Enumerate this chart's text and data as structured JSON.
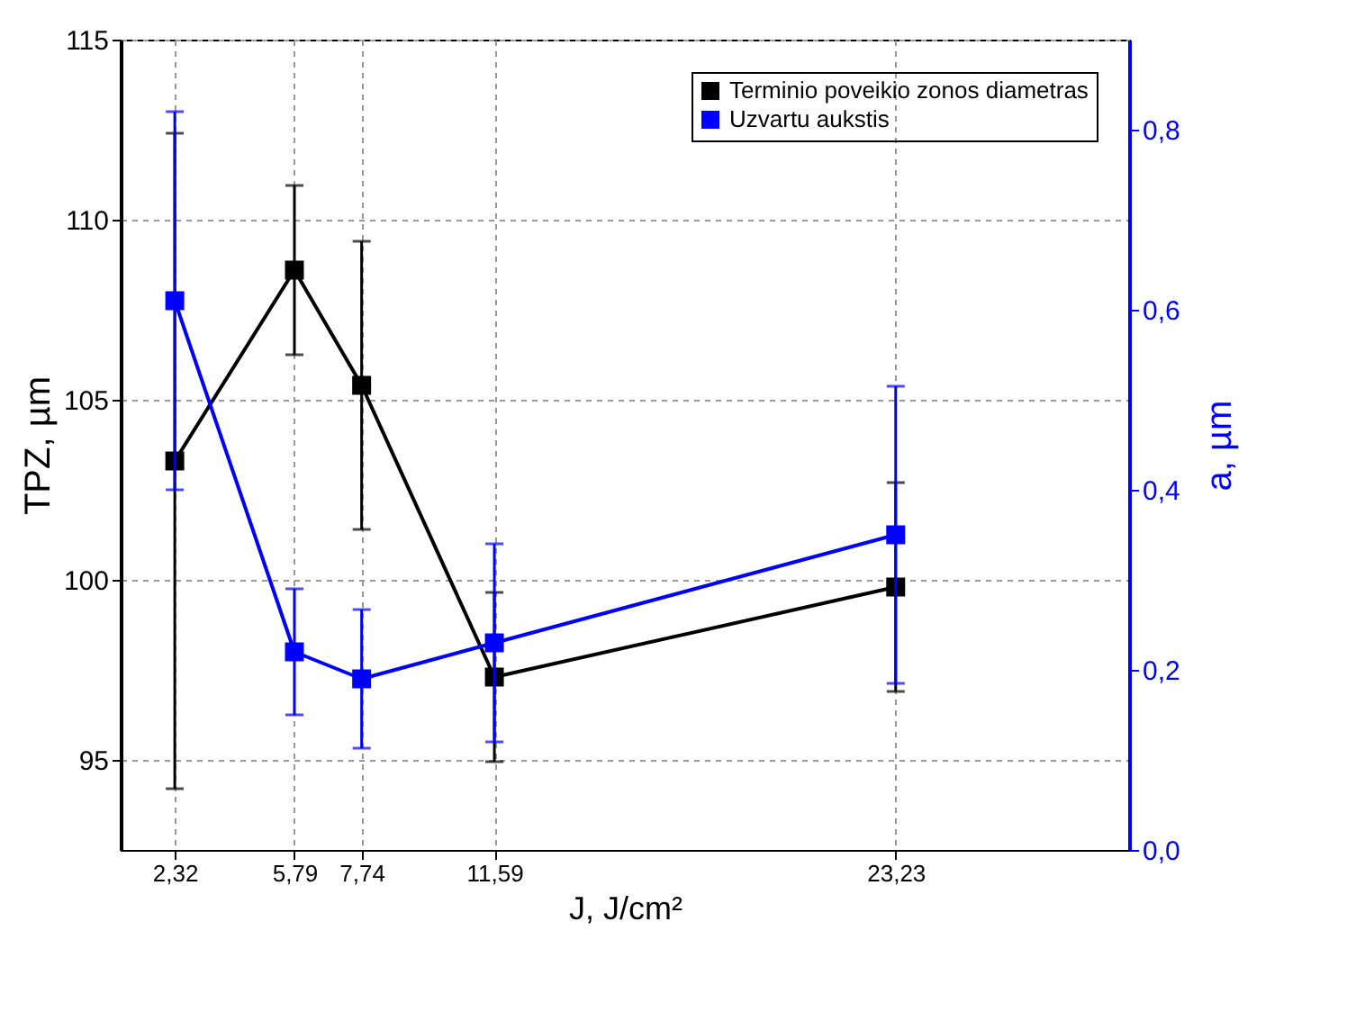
{
  "chart_data": {
    "type": "line",
    "xlabel": "J, J/cm²",
    "ylabel": "TPZ, µm",
    "y2label": "a, µm",
    "x": [
      2.32,
      5.79,
      7.74,
      11.59,
      23.23
    ],
    "xlim": [
      0.75,
      30
    ],
    "xticks": [
      {
        "value": 2.32,
        "label": "2,32"
      },
      {
        "value": 5.79,
        "label": "5,79"
      },
      {
        "value": 7.74,
        "label": "7,74"
      },
      {
        "value": 11.59,
        "label": "11,59"
      },
      {
        "value": 23.23,
        "label": "23,23"
      }
    ],
    "ylim": [
      92.5,
      115
    ],
    "yticks": [
      95,
      100,
      105,
      110,
      115
    ],
    "y2lim": [
      0,
      0.9
    ],
    "y2ticks": [
      {
        "value": 0,
        "label": "0,0"
      },
      {
        "value": 0.2,
        "label": "0,2"
      },
      {
        "value": 0.4,
        "label": "0,4"
      },
      {
        "value": 0.6,
        "label": "0,6"
      },
      {
        "value": 0.8,
        "label": "0,8"
      }
    ],
    "series": [
      {
        "name": "Terminio poveikio zonos diametras",
        "color": "#000000",
        "values": [
          103.3,
          108.6,
          105.4,
          97.3,
          99.8
        ],
        "errors": [
          9.1,
          2.35,
          4.0,
          2.35,
          2.9
        ]
      },
      {
        "name": "Uzvartu aukstis",
        "color": "#0000ff",
        "axis": "y2",
        "values": [
          0.61,
          0.22,
          0.19,
          0.23,
          0.35
        ],
        "errors": [
          0.21,
          0.07,
          0.077,
          0.11,
          0.165
        ]
      }
    ],
    "grid": true,
    "legend": "top right",
    "marker": "square",
    "line_style": "solid"
  }
}
